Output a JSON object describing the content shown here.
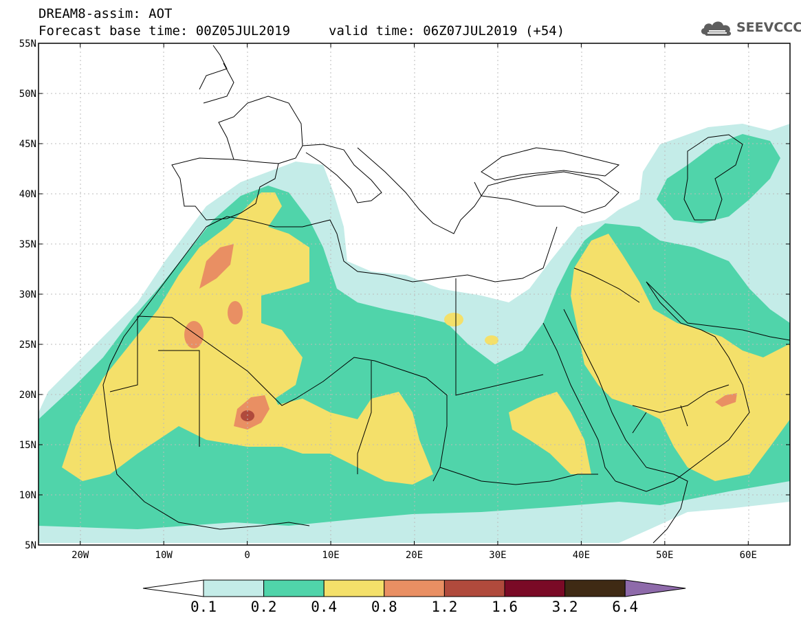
{
  "header": {
    "title": "DREAM8-assim: AOT",
    "base_time": "Forecast base time: 00Z05JUL2019",
    "valid_time": "valid time: 06Z07JUL2019 (+54)"
  },
  "logo": {
    "text": "SEEVCCC",
    "icon": "cloud-icon"
  },
  "map": {
    "variable": "AOT",
    "lon_range": [
      -25,
      65
    ],
    "lat_range": [
      5,
      55
    ],
    "lat_labels": [
      "55N",
      "50N",
      "45N",
      "40N",
      "35N",
      "30N",
      "25N",
      "20N",
      "15N",
      "10N",
      "5N"
    ],
    "lon_labels": [
      "20W",
      "10W",
      "0",
      "10E",
      "20E",
      "30E",
      "40E",
      "50E",
      "60E"
    ]
  },
  "colorbar": {
    "labels": [
      "0.1",
      "0.2",
      "0.4",
      "0.8",
      "1.2",
      "1.6",
      "3.2",
      "6.4"
    ],
    "colors": [
      "#ffffff",
      "#c4ece8",
      "#50d4aa",
      "#f4e06a",
      "#e98f63",
      "#b04a3c",
      "#7a0a26",
      "#3f2a14",
      "#8e6aaa"
    ]
  }
}
